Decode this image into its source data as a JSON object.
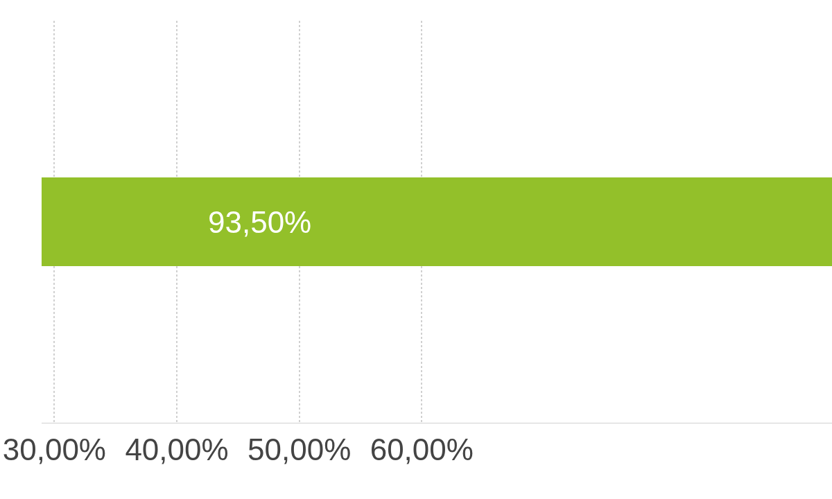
{
  "chart_data": {
    "type": "bar",
    "orientation": "horizontal",
    "categories": [
      null
    ],
    "values": [
      93.5
    ],
    "value_labels": [
      "93,50%"
    ],
    "color": "#93c02a",
    "xlim": [
      28.96,
      93.5
    ],
    "xticks": [
      {
        "value": 30,
        "label": "30,00%"
      },
      {
        "value": 40,
        "label": "40,00%"
      },
      {
        "value": 50,
        "label": "50,00%"
      },
      {
        "value": 60,
        "label": "60,00%"
      }
    ],
    "grid": "x",
    "legend": false
  }
}
